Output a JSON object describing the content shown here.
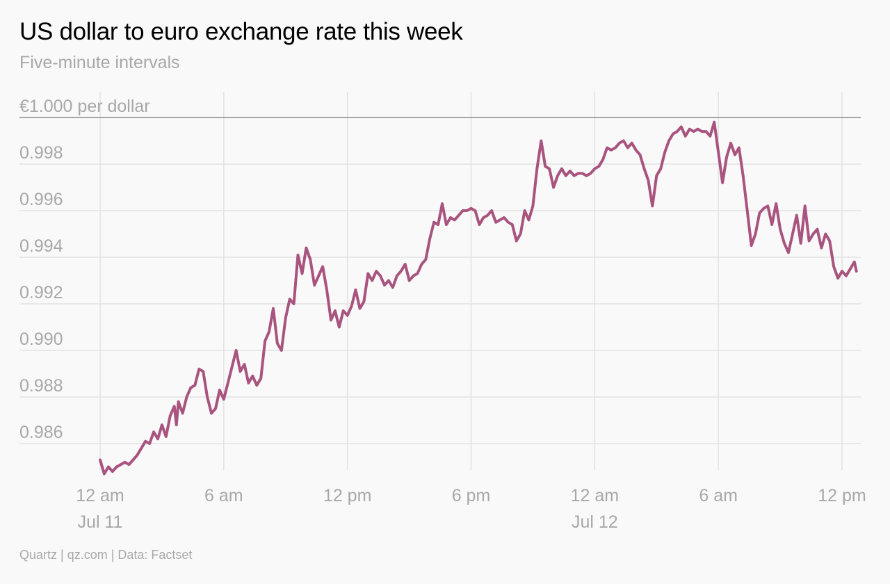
{
  "header": {
    "title": "US dollar to euro exchange rate this week",
    "subtitle": "Five-minute intervals"
  },
  "footer": {
    "source": "Quartz | qz.com | Data: Factset"
  },
  "colors": {
    "line": "#a8547f",
    "grid": "#e2e2e2",
    "reference_line": "#8a8a8a",
    "tick_text": "#a8a8a8",
    "background": "#f9f9f9"
  },
  "chart_data": {
    "type": "line",
    "title": "US dollar to euro exchange rate this week",
    "subtitle": "Five-minute intervals",
    "xlabel": "",
    "ylabel": "",
    "x_unit": "hours since 12 am Jul 11",
    "xlim": [
      0,
      36
    ],
    "ylim": [
      0.9846,
      1.0
    ],
    "grid": true,
    "y_ticks": [
      {
        "value": 1.0,
        "label": "€1.000 per dollar"
      },
      {
        "value": 0.998,
        "label": "0.998"
      },
      {
        "value": 0.996,
        "label": "0.996"
      },
      {
        "value": 0.994,
        "label": "0.994"
      },
      {
        "value": 0.992,
        "label": "0.992"
      },
      {
        "value": 0.99,
        "label": "0.990"
      },
      {
        "value": 0.988,
        "label": "0.988"
      },
      {
        "value": 0.986,
        "label": "0.986"
      }
    ],
    "x_ticks": [
      {
        "value": 0,
        "label": "12 am",
        "sublabel": "Jul 11"
      },
      {
        "value": 6,
        "label": "6 am",
        "sublabel": ""
      },
      {
        "value": 12,
        "label": "12 pm",
        "sublabel": ""
      },
      {
        "value": 18,
        "label": "6 pm",
        "sublabel": ""
      },
      {
        "value": 24,
        "label": "12 am",
        "sublabel": "Jul 12"
      },
      {
        "value": 30,
        "label": "6 am",
        "sublabel": ""
      },
      {
        "value": 36,
        "label": "12 pm",
        "sublabel": ""
      }
    ],
    "series": [
      {
        "name": "",
        "points": [
          [
            0.0,
            0.9853
          ],
          [
            0.2,
            0.9847
          ],
          [
            0.4,
            0.985
          ],
          [
            0.6,
            0.9848
          ],
          [
            0.8,
            0.985
          ],
          [
            1.0,
            0.9851
          ],
          [
            1.2,
            0.9852
          ],
          [
            1.4,
            0.9851
          ],
          [
            1.6,
            0.9853
          ],
          [
            1.8,
            0.9855
          ],
          [
            2.0,
            0.9858
          ],
          [
            2.2,
            0.9861
          ],
          [
            2.4,
            0.986
          ],
          [
            2.6,
            0.9865
          ],
          [
            2.8,
            0.9862
          ],
          [
            3.0,
            0.9868
          ],
          [
            3.2,
            0.9863
          ],
          [
            3.4,
            0.9872
          ],
          [
            3.6,
            0.9876
          ],
          [
            3.7,
            0.9868
          ],
          [
            3.8,
            0.9878
          ],
          [
            4.0,
            0.9873
          ],
          [
            4.2,
            0.988
          ],
          [
            4.4,
            0.9884
          ],
          [
            4.6,
            0.9885
          ],
          [
            4.8,
            0.9892
          ],
          [
            5.0,
            0.9891
          ],
          [
            5.2,
            0.988
          ],
          [
            5.4,
            0.9873
          ],
          [
            5.6,
            0.9875
          ],
          [
            5.8,
            0.9883
          ],
          [
            6.0,
            0.9879
          ],
          [
            6.2,
            0.9886
          ],
          [
            6.4,
            0.9893
          ],
          [
            6.6,
            0.99
          ],
          [
            6.8,
            0.9891
          ],
          [
            7.0,
            0.9894
          ],
          [
            7.2,
            0.9886
          ],
          [
            7.4,
            0.9889
          ],
          [
            7.6,
            0.9885
          ],
          [
            7.8,
            0.9888
          ],
          [
            8.0,
            0.9904
          ],
          [
            8.2,
            0.9908
          ],
          [
            8.4,
            0.9918
          ],
          [
            8.6,
            0.9903
          ],
          [
            8.8,
            0.99
          ],
          [
            9.0,
            0.9914
          ],
          [
            9.2,
            0.9922
          ],
          [
            9.4,
            0.992
          ],
          [
            9.6,
            0.9941
          ],
          [
            9.8,
            0.9933
          ],
          [
            10.0,
            0.9944
          ],
          [
            10.2,
            0.9939
          ],
          [
            10.4,
            0.9928
          ],
          [
            10.6,
            0.9932
          ],
          [
            10.8,
            0.9936
          ],
          [
            11.0,
            0.9926
          ],
          [
            11.2,
            0.9913
          ],
          [
            11.4,
            0.9917
          ],
          [
            11.6,
            0.991
          ],
          [
            11.8,
            0.9917
          ],
          [
            12.0,
            0.9915
          ],
          [
            12.2,
            0.9919
          ],
          [
            12.4,
            0.9926
          ],
          [
            12.6,
            0.9918
          ],
          [
            12.8,
            0.9921
          ],
          [
            13.0,
            0.9933
          ],
          [
            13.2,
            0.993
          ],
          [
            13.4,
            0.9934
          ],
          [
            13.6,
            0.9932
          ],
          [
            13.8,
            0.9928
          ],
          [
            14.0,
            0.993
          ],
          [
            14.2,
            0.9927
          ],
          [
            14.4,
            0.9932
          ],
          [
            14.6,
            0.9934
          ],
          [
            14.8,
            0.9937
          ],
          [
            15.0,
            0.993
          ],
          [
            15.2,
            0.9932
          ],
          [
            15.4,
            0.9933
          ],
          [
            15.6,
            0.9937
          ],
          [
            15.8,
            0.9939
          ],
          [
            16.0,
            0.9948
          ],
          [
            16.2,
            0.9955
          ],
          [
            16.4,
            0.9954
          ],
          [
            16.6,
            0.9963
          ],
          [
            16.8,
            0.9954
          ],
          [
            17.0,
            0.9957
          ],
          [
            17.2,
            0.9956
          ],
          [
            17.4,
            0.9958
          ],
          [
            17.6,
            0.996
          ],
          [
            17.8,
            0.996
          ],
          [
            18.0,
            0.9961
          ],
          [
            18.2,
            0.996
          ],
          [
            18.4,
            0.9954
          ],
          [
            18.6,
            0.9957
          ],
          [
            18.8,
            0.9958
          ],
          [
            19.0,
            0.996
          ],
          [
            19.2,
            0.9955
          ],
          [
            19.4,
            0.9956
          ],
          [
            19.6,
            0.9957
          ],
          [
            19.8,
            0.9955
          ],
          [
            20.0,
            0.9954
          ],
          [
            20.2,
            0.9947
          ],
          [
            20.4,
            0.995
          ],
          [
            20.6,
            0.996
          ],
          [
            20.8,
            0.9956
          ],
          [
            21.0,
            0.9962
          ],
          [
            21.2,
            0.9978
          ],
          [
            21.4,
            0.999
          ],
          [
            21.6,
            0.9979
          ],
          [
            21.8,
            0.9978
          ],
          [
            22.0,
            0.997
          ],
          [
            22.2,
            0.9975
          ],
          [
            22.4,
            0.9978
          ],
          [
            22.6,
            0.9975
          ],
          [
            22.8,
            0.9977
          ],
          [
            23.0,
            0.9975
          ],
          [
            23.2,
            0.9976
          ],
          [
            23.4,
            0.9976
          ],
          [
            23.6,
            0.9975
          ],
          [
            23.8,
            0.9976
          ],
          [
            24.0,
            0.9978
          ],
          [
            24.2,
            0.9979
          ],
          [
            24.4,
            0.9982
          ],
          [
            24.6,
            0.9987
          ],
          [
            24.8,
            0.9986
          ],
          [
            25.0,
            0.9987
          ],
          [
            25.2,
            0.9989
          ],
          [
            25.4,
            0.999
          ],
          [
            25.6,
            0.9987
          ],
          [
            25.8,
            0.9989
          ],
          [
            26.0,
            0.9986
          ],
          [
            26.2,
            0.9984
          ],
          [
            26.4,
            0.9978
          ],
          [
            26.6,
            0.9973
          ],
          [
            26.8,
            0.9962
          ],
          [
            27.0,
            0.9975
          ],
          [
            27.2,
            0.9978
          ],
          [
            27.4,
            0.9985
          ],
          [
            27.6,
            0.999
          ],
          [
            27.8,
            0.9993
          ],
          [
            28.0,
            0.9994
          ],
          [
            28.2,
            0.9996
          ],
          [
            28.4,
            0.9992
          ],
          [
            28.6,
            0.9995
          ],
          [
            28.8,
            0.9994
          ],
          [
            29.0,
            0.9995
          ],
          [
            29.2,
            0.9994
          ],
          [
            29.4,
            0.9994
          ],
          [
            29.6,
            0.9992
          ],
          [
            29.8,
            0.9998
          ],
          [
            30.0,
            0.9985
          ],
          [
            30.2,
            0.9972
          ],
          [
            30.4,
            0.9983
          ],
          [
            30.6,
            0.9989
          ],
          [
            30.8,
            0.9984
          ],
          [
            31.0,
            0.9987
          ],
          [
            31.2,
            0.9975
          ],
          [
            31.4,
            0.996
          ],
          [
            31.6,
            0.9945
          ],
          [
            31.8,
            0.995
          ],
          [
            32.0,
            0.9959
          ],
          [
            32.2,
            0.9961
          ],
          [
            32.4,
            0.9962
          ],
          [
            32.6,
            0.9954
          ],
          [
            32.8,
            0.9963
          ],
          [
            33.0,
            0.9952
          ],
          [
            33.2,
            0.9946
          ],
          [
            33.4,
            0.9942
          ],
          [
            33.6,
            0.995
          ],
          [
            33.8,
            0.9958
          ],
          [
            34.0,
            0.9946
          ],
          [
            34.2,
            0.9962
          ],
          [
            34.4,
            0.9947
          ],
          [
            34.6,
            0.995
          ],
          [
            34.8,
            0.9952
          ],
          [
            35.0,
            0.9944
          ],
          [
            35.2,
            0.995
          ],
          [
            35.4,
            0.9947
          ],
          [
            35.6,
            0.9936
          ],
          [
            35.8,
            0.9931
          ],
          [
            36.0,
            0.9934
          ],
          [
            36.2,
            0.9932
          ],
          [
            36.4,
            0.9935
          ],
          [
            36.6,
            0.9938
          ],
          [
            36.7,
            0.9934
          ]
        ]
      }
    ]
  }
}
